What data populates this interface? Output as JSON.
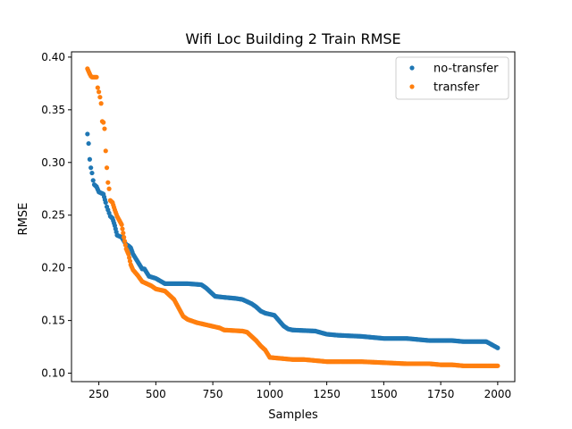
{
  "chart_data": {
    "type": "scatter",
    "title": "Wifi Loc Building 2 Train RMSE",
    "xlabel": "Samples",
    "ylabel": "RMSE",
    "xlim": [
      130,
      2075
    ],
    "ylim": [
      0.092,
      0.405
    ],
    "x_ticks": [
      250,
      500,
      750,
      1000,
      1250,
      1500,
      1750,
      2000
    ],
    "x_tick_labels": [
      "250",
      "500",
      "750",
      "1000",
      "1250",
      "1500",
      "1750",
      "2000"
    ],
    "y_ticks": [
      0.1,
      0.15,
      0.2,
      0.25,
      0.3,
      0.35,
      0.4
    ],
    "y_tick_labels": [
      "0.10",
      "0.15",
      "0.20",
      "0.25",
      "0.30",
      "0.35",
      "0.40"
    ],
    "grid": false,
    "legend_position": "top-right",
    "series": [
      {
        "name": "no-transfer",
        "color": "#1f77b4",
        "x": [
          200,
          205,
          210,
          215,
          220,
          225,
          230,
          240,
          250,
          260,
          270,
          280,
          285,
          290,
          295,
          300,
          310,
          320,
          330,
          340,
          350,
          370,
          380,
          390,
          400,
          420,
          440,
          450,
          470,
          500,
          540,
          560,
          580,
          640,
          700,
          720,
          740,
          760,
          800,
          850,
          880,
          900,
          920,
          940,
          960,
          980,
          1000,
          1020,
          1040,
          1060,
          1080,
          1100,
          1200,
          1250,
          1300,
          1400,
          1500,
          1600,
          1650,
          1700,
          1750,
          1800,
          1850,
          1900,
          1950,
          1975,
          2000
        ],
        "y": [
          0.327,
          0.318,
          0.303,
          0.295,
          0.29,
          0.283,
          0.279,
          0.277,
          0.272,
          0.271,
          0.27,
          0.262,
          0.258,
          0.255,
          0.252,
          0.249,
          0.247,
          0.24,
          0.231,
          0.23,
          0.229,
          0.222,
          0.221,
          0.219,
          0.213,
          0.206,
          0.199,
          0.199,
          0.192,
          0.19,
          0.185,
          0.185,
          0.185,
          0.185,
          0.184,
          0.181,
          0.177,
          0.173,
          0.172,
          0.171,
          0.17,
          0.168,
          0.166,
          0.163,
          0.159,
          0.157,
          0.156,
          0.155,
          0.15,
          0.145,
          0.142,
          0.141,
          0.14,
          0.137,
          0.136,
          0.135,
          0.133,
          0.133,
          0.132,
          0.131,
          0.131,
          0.131,
          0.13,
          0.13,
          0.13,
          0.127,
          0.124
        ]
      },
      {
        "name": "transfer",
        "color": "#ff7f0e",
        "x": [
          200,
          210,
          215,
          220,
          240,
          245,
          250,
          255,
          260,
          265,
          270,
          275,
          280,
          285,
          290,
          295,
          300,
          310,
          320,
          330,
          340,
          350,
          360,
          370,
          380,
          390,
          400,
          420,
          440,
          460,
          480,
          500,
          540,
          560,
          580,
          600,
          620,
          640,
          680,
          720,
          760,
          780,
          800,
          880,
          900,
          920,
          940,
          960,
          980,
          1000,
          1050,
          1100,
          1150,
          1200,
          1250,
          1300,
          1400,
          1500,
          1600,
          1700,
          1750,
          1800,
          1850,
          1900,
          1950,
          2000
        ],
        "y": [
          0.389,
          0.384,
          0.382,
          0.381,
          0.381,
          0.371,
          0.367,
          0.362,
          0.356,
          0.339,
          0.338,
          0.332,
          0.311,
          0.295,
          0.281,
          0.275,
          0.264,
          0.262,
          0.255,
          0.249,
          0.245,
          0.241,
          0.229,
          0.218,
          0.213,
          0.203,
          0.198,
          0.193,
          0.187,
          0.185,
          0.183,
          0.18,
          0.178,
          0.174,
          0.17,
          0.162,
          0.154,
          0.151,
          0.148,
          0.146,
          0.144,
          0.143,
          0.141,
          0.14,
          0.139,
          0.135,
          0.131,
          0.126,
          0.122,
          0.115,
          0.114,
          0.113,
          0.113,
          0.112,
          0.111,
          0.111,
          0.111,
          0.11,
          0.109,
          0.109,
          0.108,
          0.108,
          0.107,
          0.107,
          0.107,
          0.107
        ]
      }
    ]
  }
}
